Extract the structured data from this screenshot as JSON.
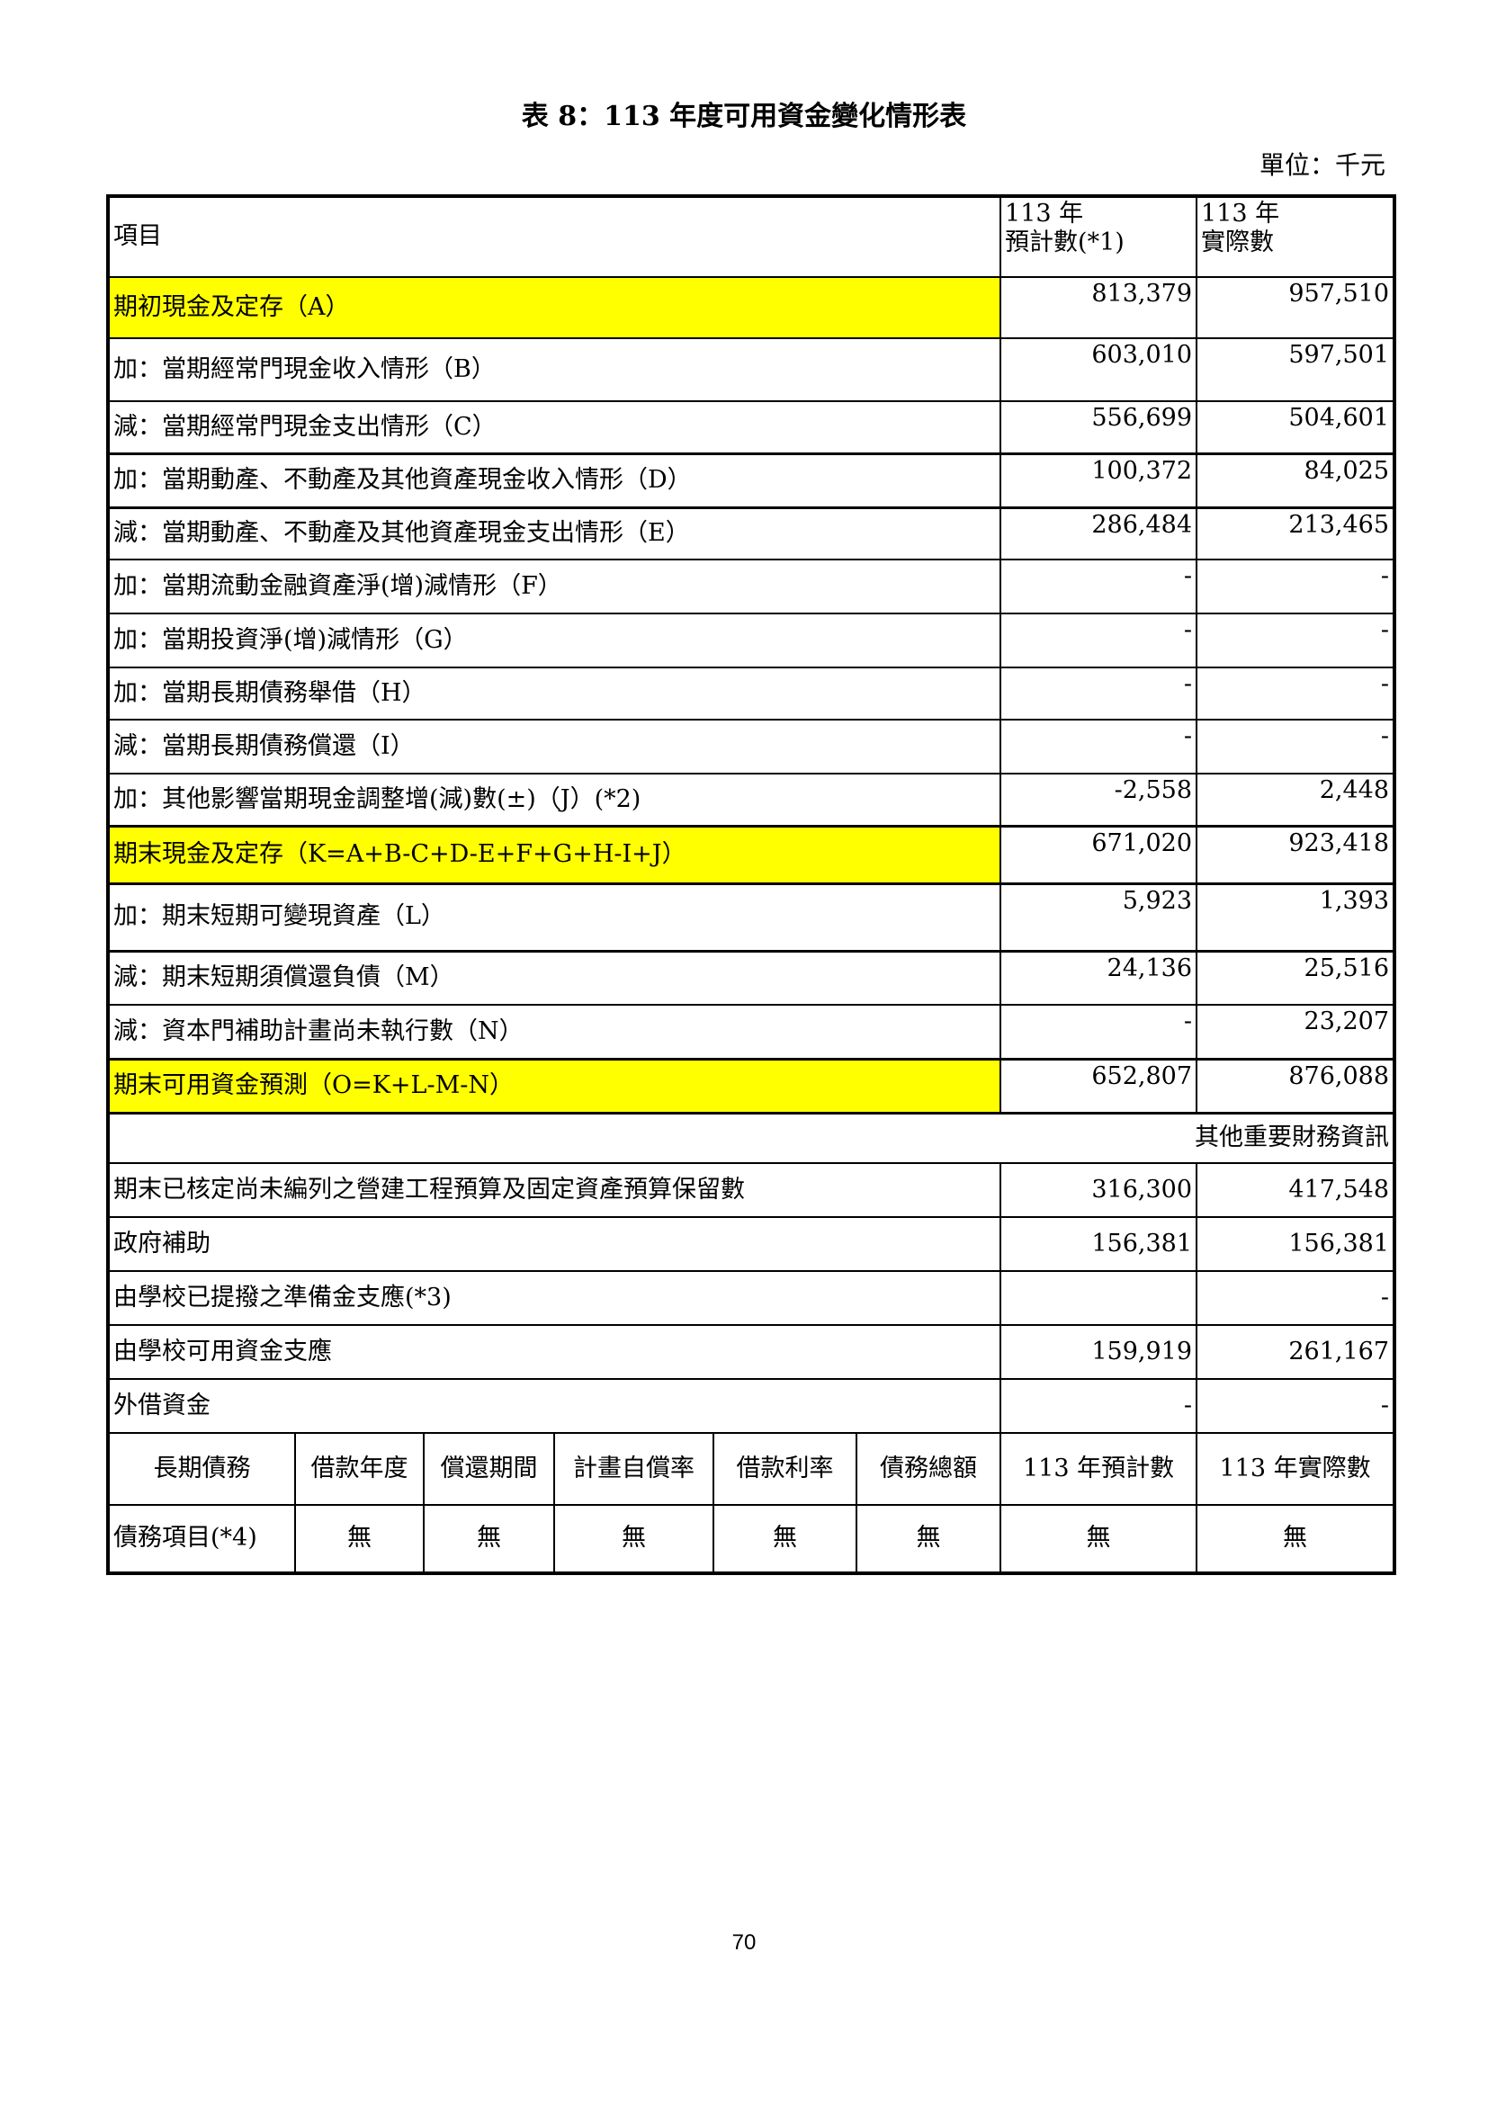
{
  "title": "表 8：113 年度可用資金變化情形表",
  "unit": "單位：千元",
  "header": {
    "item": "項目",
    "col1_line1": "113 年",
    "col1_line2": "預計數(*1)",
    "col2_line1": "113 年",
    "col2_line2": "實際數"
  },
  "rows": [
    {
      "label": "期初現金及定存（A）",
      "budget": "813,379",
      "actual": "957,510",
      "highlight": true
    },
    {
      "label": "加：當期經常門現金收入情形（B）",
      "budget": "603,010",
      "actual": "597,501"
    },
    {
      "label": "減：當期經常門現金支出情形（C）",
      "budget": "556,699",
      "actual": "504,601"
    },
    {
      "label": "加：當期動產、不動產及其他資產現金收入情形（D）",
      "budget": "100,372",
      "actual": "84,025"
    },
    {
      "label": "減：當期動產、不動產及其他資產現金支出情形（E）",
      "budget": "286,484",
      "actual": "213,465"
    },
    {
      "label": "加：當期流動金融資產淨(增)減情形（F）",
      "budget": "-",
      "actual": "-"
    },
    {
      "label": "加：當期投資淨(增)減情形（G）",
      "budget": "-",
      "actual": "-"
    },
    {
      "label": "加：當期長期債務舉借（H）",
      "budget": "-",
      "actual": "-"
    },
    {
      "label": "減：當期長期債務償還（I）",
      "budget": "-",
      "actual": "-"
    },
    {
      "label": "加：其他影響當期現金調整增(減)數(±)（J）(*2)",
      "budget": "-2,558",
      "actual": "2,448"
    },
    {
      "label": "期末現金及定存（K=A+B-C+D-E+F+G+H-I+J）",
      "budget": "671,020",
      "actual": "923,418",
      "highlight": true
    },
    {
      "label": "加：期末短期可變現資產（L）",
      "budget": "5,923",
      "actual": "1,393"
    },
    {
      "label": "減：期末短期須償還負債（M）",
      "budget": "24,136",
      "actual": "25,516"
    },
    {
      "label": "減：資本門補助計畫尚未執行數（N）",
      "budget": "-",
      "actual": "23,207"
    },
    {
      "label": "期末可用資金預測（O=K+L-M-N）",
      "budget": "652,807",
      "actual": "876,088",
      "highlight": true
    }
  ],
  "other_title": "其他重要財務資訊",
  "other_rows": [
    {
      "label": "期末已核定尚未編列之營建工程預算及固定資產預算保留數",
      "budget": "316,300",
      "actual": "417,548"
    },
    {
      "label": "政府補助",
      "budget": "156,381",
      "actual": "156,381"
    },
    {
      "label": "由學校已提撥之準備金支應(*3)",
      "budget": "",
      "actual": "-"
    },
    {
      "label": "由學校可用資金支應",
      "budget": "159,919",
      "actual": "261,167"
    },
    {
      "label": "外借資金",
      "budget": "-",
      "actual": "-"
    }
  ],
  "debt_header": [
    "長期債務",
    "借款年度",
    "償還期間",
    "計畫自償率",
    "借款利率",
    "債務總額",
    "113 年預計數",
    "113 年實際數"
  ],
  "debt_row": [
    "債務項目(*4)",
    "無",
    "無",
    "無",
    "無",
    "無",
    "無",
    "無"
  ],
  "page_number": "70",
  "colors": {
    "highlight": "#ffff00"
  }
}
